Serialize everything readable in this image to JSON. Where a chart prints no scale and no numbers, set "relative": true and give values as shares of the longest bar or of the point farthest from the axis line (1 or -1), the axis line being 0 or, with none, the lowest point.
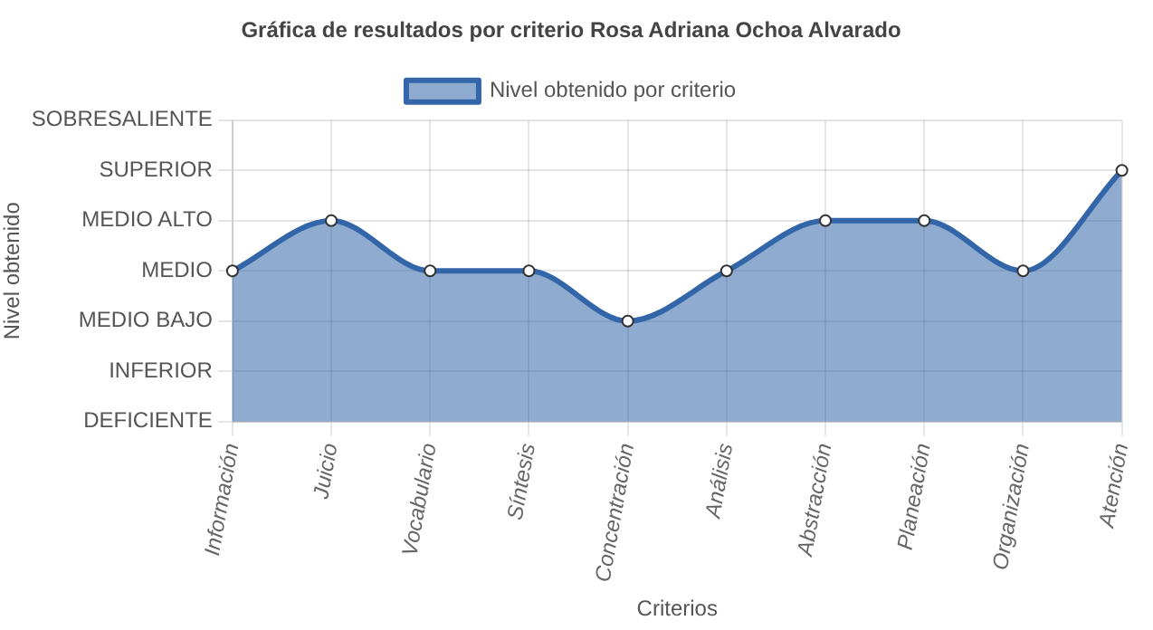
{
  "chart_data": {
    "type": "area",
    "title": "Gráfica de resultados por criterio Rosa Adriana Ochoa Alvarado",
    "xlabel": "Criterios",
    "annotations": [
      "Nivel obtenido"
    ],
    "categories": [
      "Información",
      "Juicio",
      "Vocabulario",
      "Síntesis",
      "Concentración",
      "Análisis",
      "Abstracción",
      "Planeación",
      "Organización",
      "Atención"
    ],
    "y_categories": [
      "SOBRESALIENTE",
      "SUPERIOR",
      "MEDIO ALTO",
      "MEDIO",
      "MEDIO BAJO",
      "INFERIOR",
      "DEFICIENTE"
    ],
    "relative": true,
    "series": [
      {
        "name": "Nivel obtenido por criterio",
        "color": "#3366a8",
        "values": [
          0.6,
          0.8,
          0.6,
          0.6,
          0.4,
          0.6,
          0.8,
          0.8,
          0.6,
          1
        ]
      }
    ],
    "grid": true,
    "legend": "top",
    "marker": "circle",
    "line_style": "solid"
  }
}
